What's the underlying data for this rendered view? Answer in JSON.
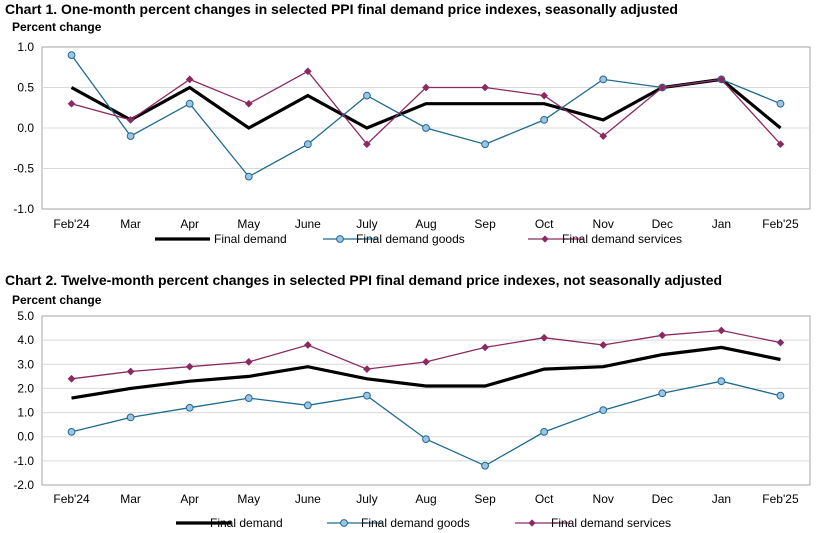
{
  "charts": [
    {
      "title": "Chart 1. One-month percent changes in selected PPI final demand price indexes, seasonally adjusted",
      "y_title": "Percent change"
    },
    {
      "title": "Chart 2. Twelve-month percent changes in selected PPI final demand price indexes, not seasonally adjusted",
      "y_title": "Percent change"
    }
  ],
  "colors": {
    "final_demand": "#000000",
    "goods": "#1f6a8e",
    "goods_fill": "#9dc3e6",
    "services": "#8b2a62",
    "grid": "#d9d9d9",
    "axis": "#a6a6a6"
  },
  "chart_data": [
    {
      "type": "line",
      "title": "Chart 1. One-month percent changes in selected PPI final demand price indexes, seasonally adjusted",
      "ylabel": "Percent change",
      "categories": [
        "Feb'24",
        "Mar",
        "Apr",
        "May",
        "June",
        "July",
        "Aug",
        "Sep",
        "Oct",
        "Nov",
        "Dec",
        "Jan",
        "Feb'25"
      ],
      "ylim": [
        -1.0,
        1.0
      ],
      "yticks": [
        "1.0",
        "0.5",
        "0.0",
        "-0.5",
        "-1.0"
      ],
      "ytick_values": [
        1.0,
        0.5,
        0.0,
        -0.5,
        -1.0
      ],
      "grid": true,
      "legend": "bottom",
      "series": [
        {
          "name": "Final demand",
          "values": [
            0.5,
            0.1,
            0.5,
            0.0,
            0.4,
            0.0,
            0.3,
            0.3,
            0.3,
            0.1,
            0.5,
            0.6,
            0.0
          ]
        },
        {
          "name": "Final demand goods",
          "values": [
            0.9,
            -0.1,
            0.3,
            -0.6,
            -0.2,
            0.4,
            0.0,
            -0.2,
            0.1,
            0.6,
            0.5,
            0.6,
            0.3
          ]
        },
        {
          "name": "Final demand services",
          "values": [
            0.3,
            0.1,
            0.6,
            0.3,
            0.7,
            -0.2,
            0.5,
            0.5,
            0.4,
            -0.1,
            0.5,
            0.6,
            -0.2
          ]
        }
      ]
    },
    {
      "type": "line",
      "title": "Chart 2. Twelve-month percent changes in selected PPI final demand price indexes, not seasonally adjusted",
      "ylabel": "Percent change",
      "categories": [
        "Feb'24",
        "Mar",
        "Apr",
        "May",
        "June",
        "July",
        "Aug",
        "Sep",
        "Oct",
        "Nov",
        "Dec",
        "Jan",
        "Feb'25"
      ],
      "ylim": [
        -2.0,
        5.0
      ],
      "yticks": [
        "5.0",
        "4.0",
        "3.0",
        "2.0",
        "1.0",
        "0.0",
        "-1.0",
        "-2.0"
      ],
      "ytick_values": [
        5.0,
        4.0,
        3.0,
        2.0,
        1.0,
        0.0,
        -1.0,
        -2.0
      ],
      "grid": true,
      "legend": "bottom",
      "series": [
        {
          "name": "Final demand",
          "values": [
            1.6,
            2.0,
            2.3,
            2.5,
            2.9,
            2.4,
            2.1,
            2.1,
            2.8,
            2.9,
            3.4,
            3.7,
            3.2
          ]
        },
        {
          "name": "Final demand goods",
          "values": [
            0.2,
            0.8,
            1.2,
            1.6,
            1.3,
            1.7,
            -0.1,
            -1.2,
            0.2,
            1.1,
            1.8,
            2.3,
            1.7
          ]
        },
        {
          "name": "Final demand services",
          "values": [
            2.4,
            2.7,
            2.9,
            3.1,
            3.8,
            2.8,
            3.1,
            3.7,
            4.1,
            3.8,
            4.2,
            4.4,
            3.9
          ]
        }
      ]
    }
  ]
}
